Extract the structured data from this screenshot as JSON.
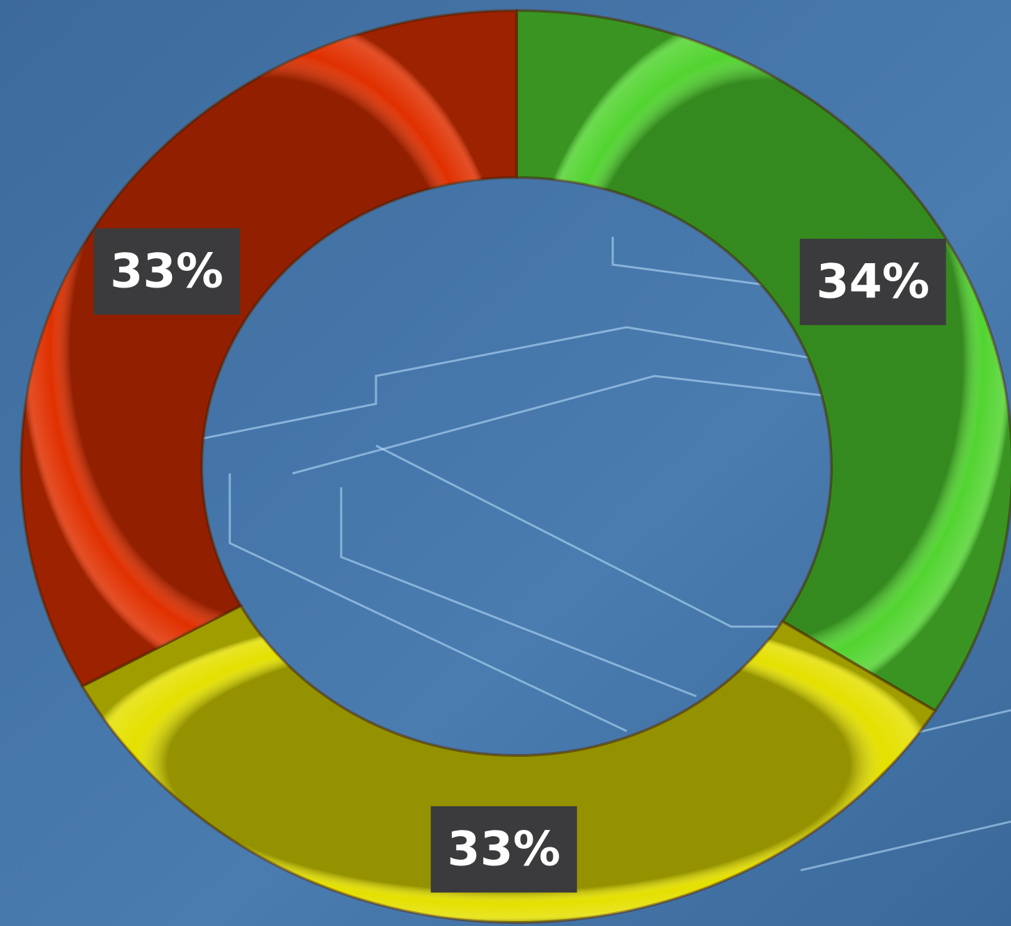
{
  "chart_data": {
    "type": "donut",
    "values": [
      34,
      33,
      33
    ],
    "value_labels": [
      "34%",
      "33%",
      "33%"
    ],
    "colors": [
      "#52d430",
      "#e4e000",
      "#e03000"
    ]
  }
}
